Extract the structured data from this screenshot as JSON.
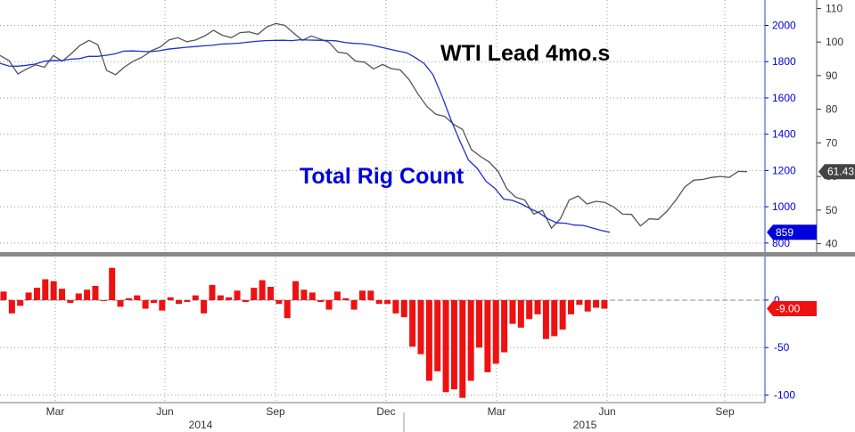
{
  "colors": {
    "wti": "#555555",
    "rig_count": "#1f2fd0",
    "diff_bars": "#ee1111",
    "rig_axis": "#0000dd",
    "last_rig_tag": "#0000dd",
    "last_diff_tag": "#ee1111",
    "last_wti_tag": "#444444",
    "grid": "#999999"
  },
  "annotations": {
    "wti": "WTI Lead 4mo.s",
    "rig": "Total Rig Count"
  },
  "tags": {
    "rig_last": "859",
    "wti_last": "61.43",
    "diff_last": "-9.00"
  },
  "chart_data": [
    {
      "type": "line",
      "panel": "top",
      "grid": true,
      "x_ticks": [
        "Mar",
        "Jun",
        "Sep",
        "Dec",
        "Mar",
        "Jun",
        "Sep"
      ],
      "x_year_labels": [
        "2014",
        "2015"
      ],
      "y_left_ticks": [
        "800",
        "1000",
        "1200",
        "1400",
        "1600",
        "1800",
        "2000"
      ],
      "y_right_ticks": [
        "40",
        "50",
        "60",
        "70",
        "80",
        "90",
        "100",
        "110"
      ],
      "ylim_left": [
        750,
        2140
      ],
      "ylim_right": [
        37.5,
        112.5
      ],
      "series": [
        {
          "name": "WTI Lead 4mo.s",
          "axis": "right",
          "values": [
            96.0,
            94.5,
            90.5,
            92.0,
            93.2,
            92.5,
            96.0,
            94.3,
            96.5,
            99.0,
            100.5,
            99.2,
            91.5,
            90.3,
            92.6,
            94.3,
            95.5,
            97.4,
            98.5,
            100.6,
            101.3,
            100.1,
            100.6,
            101.8,
            103.5,
            102.0,
            101.3,
            102.8,
            103.0,
            102.3,
            104.5,
            105.5,
            105.0,
            102.7,
            100.5,
            101.8,
            100.9,
            99.9,
            97.0,
            96.6,
            94.3,
            94.0,
            92.0,
            93.3,
            92.1,
            91.7,
            88.8,
            84.5,
            80.8,
            78.5,
            77.9,
            75.5,
            74.0,
            68.0,
            66.0,
            64.3,
            61.5,
            56.3,
            53.8,
            53.0,
            48.8,
            49.9,
            44.6,
            47.4,
            53.0,
            54.2,
            51.8,
            52.6,
            52.3,
            50.9,
            48.8,
            48.7,
            45.3,
            47.4,
            47.2,
            49.7,
            53.0,
            56.9,
            58.9,
            59.1,
            59.7,
            60.0,
            59.7,
            61.5,
            61.43
          ]
        },
        {
          "name": "Total Rig Count",
          "axis": "left",
          "values": [
            1791,
            1776,
            1775,
            1780,
            1787,
            1802,
            1807,
            1806,
            1814,
            1817,
            1829,
            1829,
            1835,
            1843,
            1858,
            1859,
            1857,
            1855,
            1860,
            1869,
            1874,
            1879,
            1883,
            1887,
            1890,
            1897,
            1899,
            1902,
            1907,
            1912,
            1916,
            1917,
            1918,
            1916,
            1921,
            1919,
            1918,
            1917,
            1915,
            1906,
            1901,
            1899,
            1892,
            1881,
            1870,
            1859,
            1849,
            1822,
            1790,
            1728,
            1611,
            1482,
            1366,
            1258,
            1211,
            1140,
            1101,
            1042,
            1035,
            1015,
            989,
            966,
            933,
            911,
            909,
            899,
            897,
            883,
            870,
            859
          ]
        }
      ]
    },
    {
      "type": "bar",
      "panel": "bottom",
      "grid": true,
      "y_ticks": [
        "-100",
        "-50",
        "0"
      ],
      "ylim": [
        -108,
        45
      ],
      "series": [
        {
          "name": "",
          "values": [
            9,
            -14,
            -6,
            8,
            13,
            22,
            20,
            12,
            -3,
            7,
            11,
            15,
            0,
            34,
            -7,
            2,
            5,
            -9,
            -3,
            -11,
            3,
            -4,
            -2,
            5,
            -14,
            16,
            5,
            3,
            10,
            -2,
            13,
            21,
            14,
            -4,
            -19,
            20,
            11,
            8,
            -2,
            -10,
            9,
            2,
            -10,
            10,
            10,
            -4,
            -4,
            -14,
            -18,
            -49,
            -57,
            -85,
            -75,
            -97,
            -94,
            -103,
            -85,
            -50,
            -76,
            -67,
            -55,
            -25,
            -29,
            -20,
            -15,
            -41,
            -38,
            -31,
            -15,
            -5,
            -12,
            -8,
            -9
          ]
        }
      ]
    }
  ]
}
